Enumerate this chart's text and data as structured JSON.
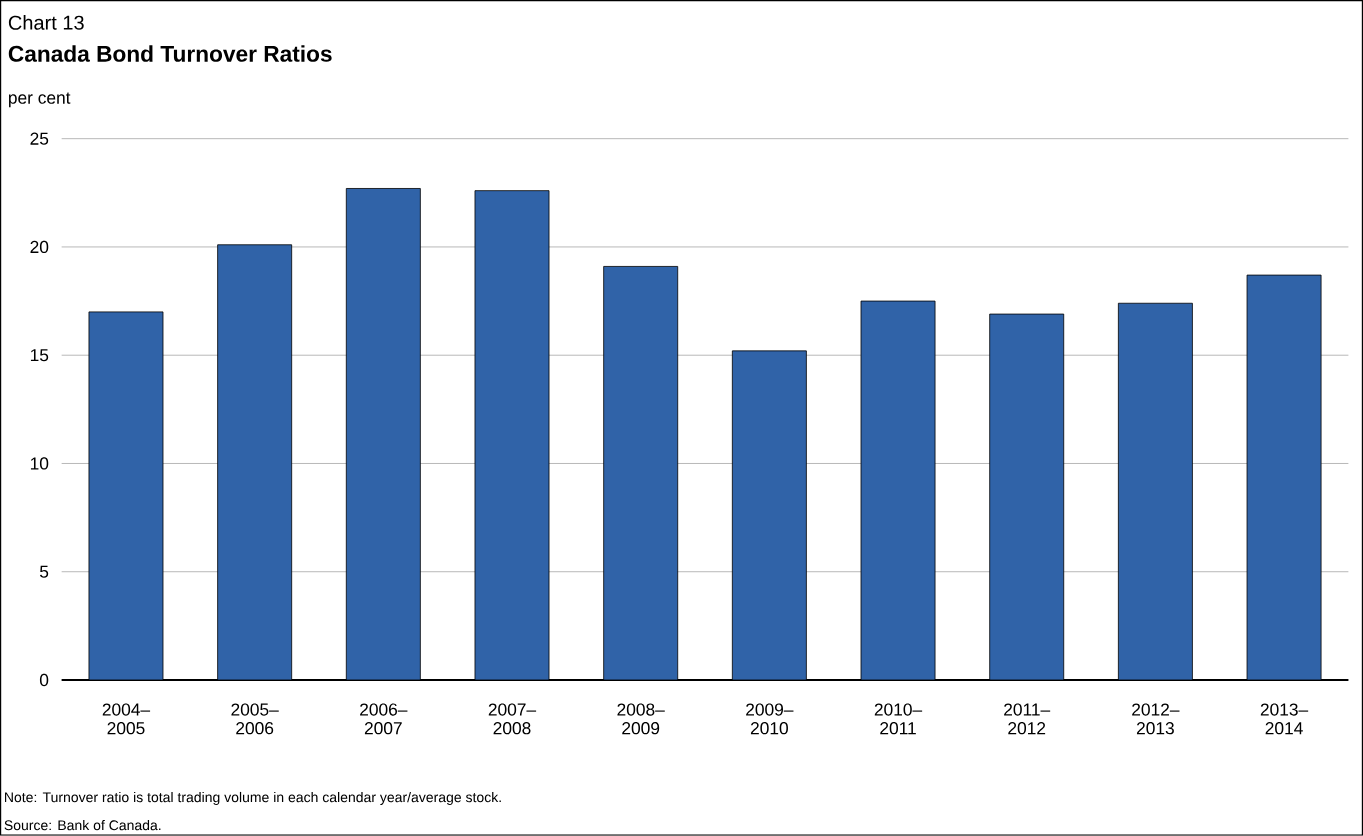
{
  "chart_data": {
    "type": "bar",
    "title": "Canada Bond Turnover Ratios",
    "ylabel": "per cent",
    "categories": [
      "2004– 2005",
      "2005– 2006",
      "2006– 2007",
      "2007– 2008",
      "2008– 2009",
      "2009– 2010",
      "2010– 2011",
      "2011– 2012",
      "2012– 2013",
      "2013– 2014"
    ],
    "values": [
      17.0,
      20.1,
      22.7,
      22.6,
      19.1,
      15.2,
      17.5,
      16.9,
      17.4,
      18.7
    ],
    "color": "#3063a8",
    "ylim": [
      0,
      25
    ],
    "yticks": [
      0,
      5,
      10,
      15,
      20,
      25
    ],
    "grid": "y",
    "annotations": [
      "Chart 13",
      "Note: Turnover ratio is total trading volume in each calendar year/average stock.",
      "Source: Bank of Canada."
    ]
  }
}
